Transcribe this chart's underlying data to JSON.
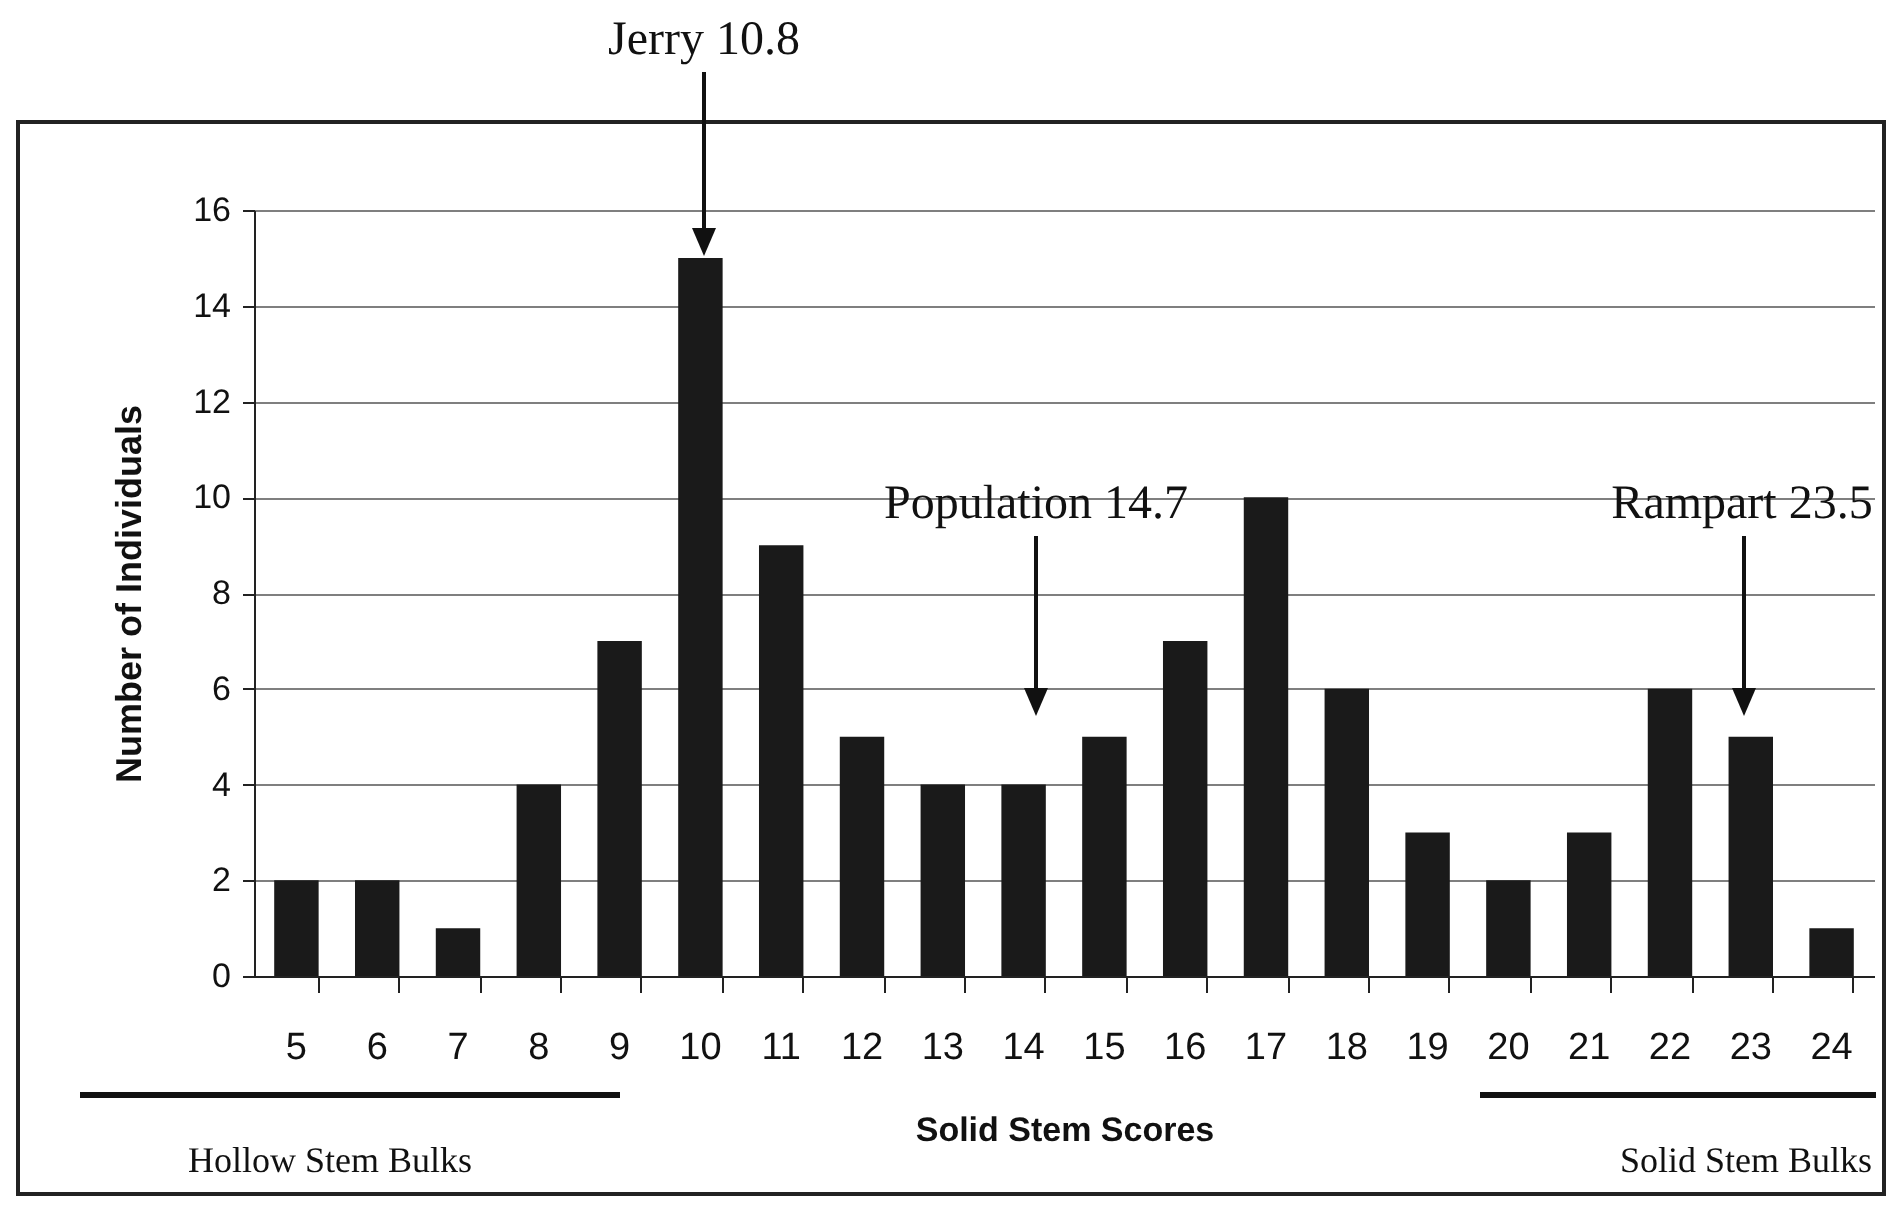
{
  "chart_data": {
    "type": "bar",
    "xlabel": "Solid Stem Scores",
    "ylabel": "Number of Individuals",
    "categories": [
      "5",
      "6",
      "7",
      "8",
      "9",
      "10",
      "11",
      "12",
      "13",
      "14",
      "15",
      "16",
      "17",
      "18",
      "19",
      "20",
      "21",
      "22",
      "23",
      "24"
    ],
    "values": [
      2,
      2,
      1,
      4,
      7,
      15,
      9,
      5,
      4,
      4,
      5,
      7,
      10,
      6,
      3,
      2,
      3,
      6,
      5,
      1
    ],
    "color": "#1a1a1a",
    "ylim": [
      0,
      16
    ],
    "yticks": [
      0,
      2,
      4,
      6,
      8,
      10,
      12,
      14,
      16
    ],
    "grid": "y",
    "annotations": [
      "Jerry 10.8",
      "Population 14.7",
      "Rampart 23.5",
      "Hollow Stem Bulks",
      "Solid Stem Bulks"
    ]
  }
}
